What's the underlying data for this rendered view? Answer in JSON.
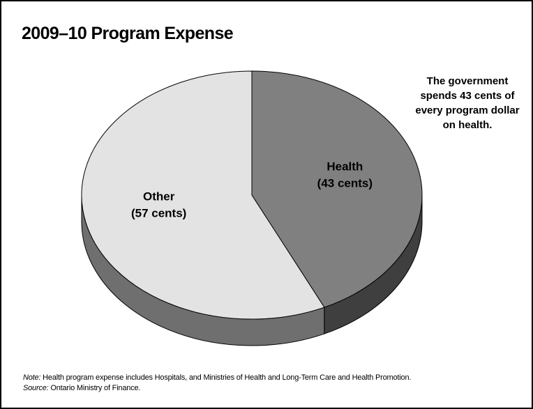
{
  "chart_data": {
    "type": "pie",
    "title": "2009–10 Program Expense",
    "slices": [
      {
        "label": "Health",
        "value_label": "(43 cents)",
        "value": 43,
        "color": "#808080",
        "side_color": "#3f3f3f"
      },
      {
        "label": "Other",
        "value_label": "(57 cents)",
        "value": 57,
        "color": "#e3e3e3",
        "side_color": "#6f6f6f"
      }
    ],
    "annotation": "The government spends 43 cents of every program dollar on health."
  },
  "footnotes": {
    "note_label": "Note:",
    "note_text": " Health program expense includes Hospitals, and Ministries of Health and Long-Term Care and Health Promotion.",
    "source_label": "Source:",
    "source_text": " Ontario Ministry of Finance."
  }
}
